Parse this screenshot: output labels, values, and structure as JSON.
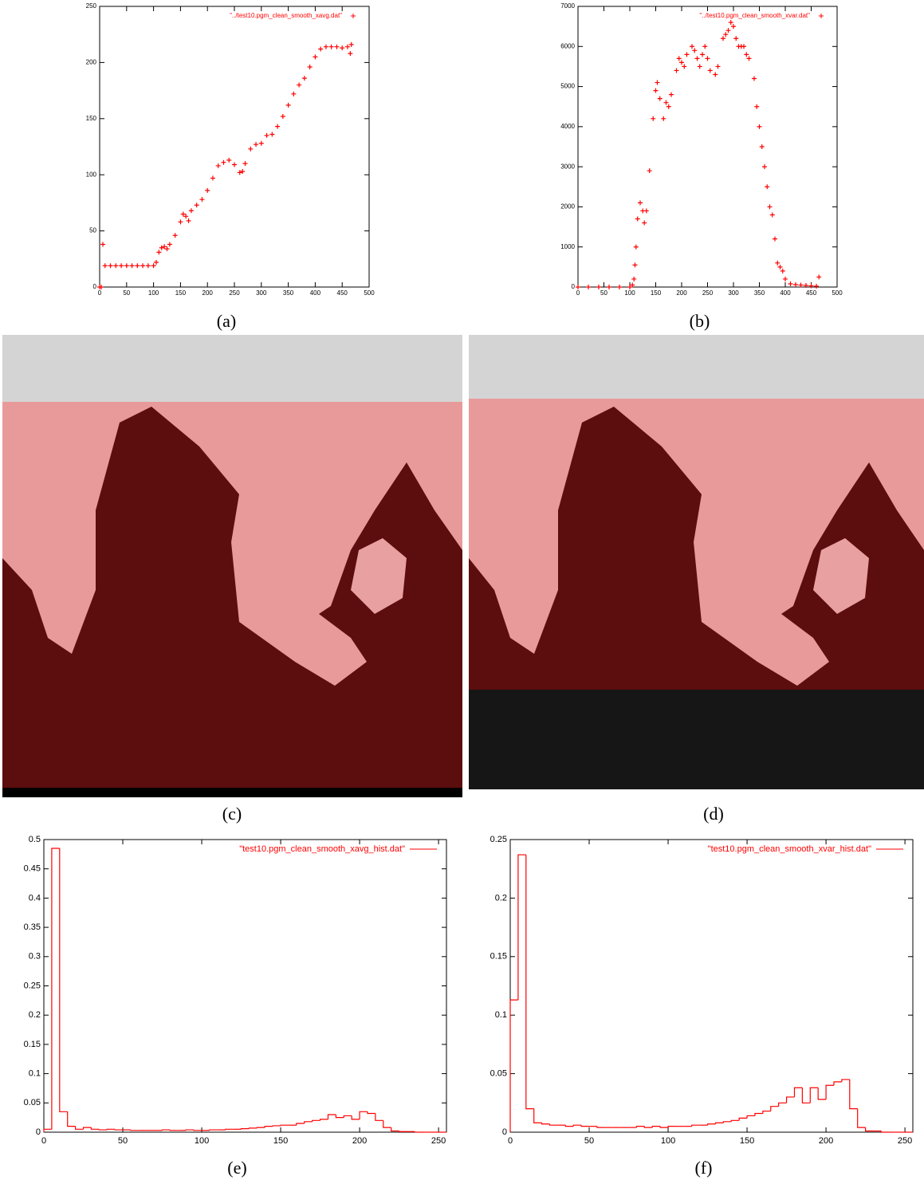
{
  "chart_data": [
    {
      "type": "scatter",
      "caption": "(a)",
      "x": [
        0,
        3,
        6,
        10,
        20,
        30,
        40,
        50,
        60,
        70,
        80,
        90,
        100,
        105,
        110,
        115,
        120,
        125,
        130,
        140,
        150,
        155,
        160,
        165,
        170,
        180,
        190,
        200,
        210,
        220,
        230,
        240,
        250,
        260,
        265,
        270,
        280,
        290,
        300,
        310,
        320,
        330,
        340,
        350,
        360,
        370,
        380,
        390,
        400,
        410,
        420,
        430,
        440,
        450,
        460,
        465,
        467
      ],
      "series": [
        {
          "name": "\"../test10.pgm_clean_smooth_xavg.dat\"",
          "color": "#ff0000",
          "values": [
            0,
            0,
            38,
            19,
            19,
            19,
            19,
            19,
            19,
            19,
            19,
            19,
            19,
            22,
            31,
            35,
            36,
            34,
            38,
            46,
            58,
            65,
            63,
            59,
            68,
            73,
            78,
            86,
            97,
            108,
            111,
            113,
            109,
            102,
            103,
            110,
            123,
            127,
            128,
            135,
            136,
            143,
            152,
            162,
            172,
            180,
            186,
            196,
            205,
            212,
            214,
            214,
            214,
            213,
            214,
            208,
            216
          ]
        }
      ],
      "xlim": [
        0,
        500
      ],
      "xticks": [
        0,
        50,
        100,
        150,
        200,
        250,
        300,
        350,
        400,
        450,
        500
      ],
      "ylim": [
        0,
        250
      ],
      "yticks": [
        0,
        50,
        100,
        150,
        200,
        250
      ],
      "legend": "upper right"
    },
    {
      "type": "scatter",
      "caption": "(b)",
      "x": [
        0,
        20,
        40,
        60,
        80,
        100,
        105,
        108,
        110,
        112,
        115,
        120,
        125,
        128,
        132,
        138,
        145,
        150,
        153,
        158,
        165,
        170,
        175,
        180,
        190,
        195,
        200,
        205,
        210,
        220,
        225,
        230,
        235,
        240,
        245,
        250,
        255,
        265,
        270,
        280,
        285,
        290,
        295,
        300,
        305,
        310,
        315,
        320,
        325,
        330,
        340,
        345,
        350,
        355,
        360,
        365,
        370,
        375,
        380,
        385,
        390,
        395,
        400,
        410,
        420,
        430,
        440,
        450,
        460,
        465
      ],
      "series": [
        {
          "name": "\"../test10.pgm_clean_smooth_xvar.dat\"",
          "color": "#ff0000",
          "values": [
            0,
            0,
            0,
            0,
            0,
            0,
            50,
            200,
            550,
            1000,
            1700,
            2100,
            1900,
            1600,
            1900,
            2900,
            4200,
            4900,
            5100,
            4700,
            4200,
            4600,
            4500,
            4800,
            5400,
            5700,
            5600,
            5500,
            5800,
            6000,
            5900,
            5700,
            5500,
            5800,
            6000,
            5700,
            5400,
            5300,
            5500,
            6200,
            6300,
            6400,
            6600,
            6500,
            6200,
            6000,
            6000,
            6000,
            5800,
            5700,
            5200,
            4500,
            4000,
            3500,
            3000,
            2500,
            2000,
            1800,
            1200,
            600,
            500,
            400,
            200,
            80,
            60,
            50,
            40,
            30,
            20,
            250
          ]
        }
      ],
      "xlim": [
        0,
        500
      ],
      "xticks": [
        0,
        50,
        100,
        150,
        200,
        250,
        300,
        350,
        400,
        450,
        500
      ],
      "ylim": [
        0,
        7000
      ],
      "yticks": [
        0,
        1000,
        2000,
        3000,
        4000,
        5000,
        6000,
        7000
      ],
      "legend": "upper right"
    },
    {
      "type": "histogram",
      "caption": "(e)",
      "bins": [
        0,
        5,
        10,
        15,
        20,
        25,
        30,
        35,
        40,
        45,
        50,
        55,
        60,
        65,
        70,
        75,
        80,
        85,
        90,
        95,
        100,
        105,
        110,
        115,
        120,
        125,
        130,
        135,
        140,
        145,
        150,
        155,
        160,
        165,
        170,
        175,
        180,
        185,
        190,
        195,
        200,
        205,
        210,
        215,
        220,
        225,
        230,
        235,
        240,
        245,
        250,
        255
      ],
      "series": [
        {
          "name": "\"test10.pgm_clean_smooth_xavg_hist.dat\"",
          "color": "#ff0000",
          "values": [
            0.005,
            0.485,
            0.035,
            0.01,
            0.005,
            0.008,
            0.005,
            0.004,
            0.005,
            0.004,
            0.004,
            0.003,
            0.003,
            0.003,
            0.003,
            0.004,
            0.003,
            0.003,
            0.004,
            0.003,
            0.003,
            0.004,
            0.004,
            0.005,
            0.005,
            0.006,
            0.007,
            0.008,
            0.01,
            0.011,
            0.012,
            0.012,
            0.015,
            0.018,
            0.02,
            0.022,
            0.03,
            0.025,
            0.028,
            0.022,
            0.035,
            0.032,
            0.02,
            0.008,
            0.002,
            0.001,
            0.001,
            0,
            0,
            0,
            0
          ]
        }
      ],
      "xlim": [
        0,
        255
      ],
      "xticks": [
        0,
        50,
        100,
        150,
        200,
        250
      ],
      "ylim": [
        0,
        0.5
      ],
      "yticks": [
        0,
        0.05,
        0.1,
        0.15,
        0.2,
        0.25,
        0.3,
        0.35,
        0.4,
        0.45,
        0.5
      ],
      "legend": "upper right"
    },
    {
      "type": "histogram",
      "caption": "(f)",
      "bins": [
        0,
        5,
        10,
        15,
        20,
        25,
        30,
        35,
        40,
        45,
        50,
        55,
        60,
        65,
        70,
        75,
        80,
        85,
        90,
        95,
        100,
        105,
        110,
        115,
        120,
        125,
        130,
        135,
        140,
        145,
        150,
        155,
        160,
        165,
        170,
        175,
        180,
        185,
        190,
        195,
        200,
        205,
        210,
        215,
        220,
        225,
        230,
        235,
        240,
        245,
        250,
        255
      ],
      "series": [
        {
          "name": "\"test10.pgm_clean_smooth_xvar_hist.dat\"",
          "color": "#ff0000",
          "values": [
            0.113,
            0.237,
            0.02,
            0.008,
            0.007,
            0.006,
            0.006,
            0.005,
            0.006,
            0.005,
            0.005,
            0.004,
            0.004,
            0.004,
            0.004,
            0.004,
            0.005,
            0.004,
            0.005,
            0.004,
            0.005,
            0.005,
            0.005,
            0.006,
            0.006,
            0.007,
            0.008,
            0.009,
            0.01,
            0.012,
            0.014,
            0.016,
            0.018,
            0.022,
            0.025,
            0.03,
            0.038,
            0.025,
            0.038,
            0.028,
            0.04,
            0.043,
            0.045,
            0.02,
            0.004,
            0.001,
            0.001,
            0,
            0,
            0,
            0
          ]
        }
      ],
      "xlim": [
        0,
        255
      ],
      "xticks": [
        0,
        50,
        100,
        150,
        200,
        250
      ],
      "ylim": [
        0,
        0.25
      ],
      "yticks": [
        0,
        0.05,
        0.1,
        0.15,
        0.2,
        0.25
      ],
      "legend": "upper right"
    }
  ],
  "images": [
    {
      "caption": "(c)"
    },
    {
      "caption": "(d)"
    }
  ]
}
